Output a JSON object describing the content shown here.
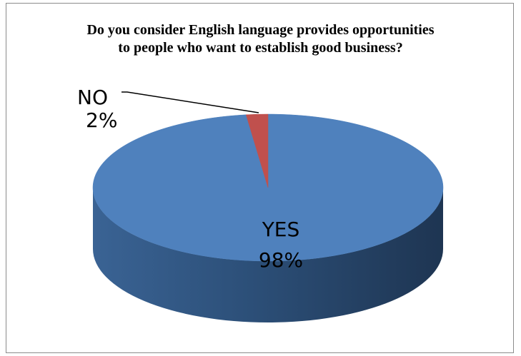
{
  "chart_data": {
    "type": "pie",
    "title_lines": [
      "Do you consider English language provides opportunities",
      "to people who want to establish good business?"
    ],
    "slices": [
      {
        "name": "YES",
        "value": 98,
        "value_label": "98%",
        "color": "#4f81bd"
      },
      {
        "name": "NO",
        "value": 2,
        "value_label": "2%",
        "color": "#c0504d"
      }
    ],
    "style": "3d",
    "legend": "none"
  }
}
